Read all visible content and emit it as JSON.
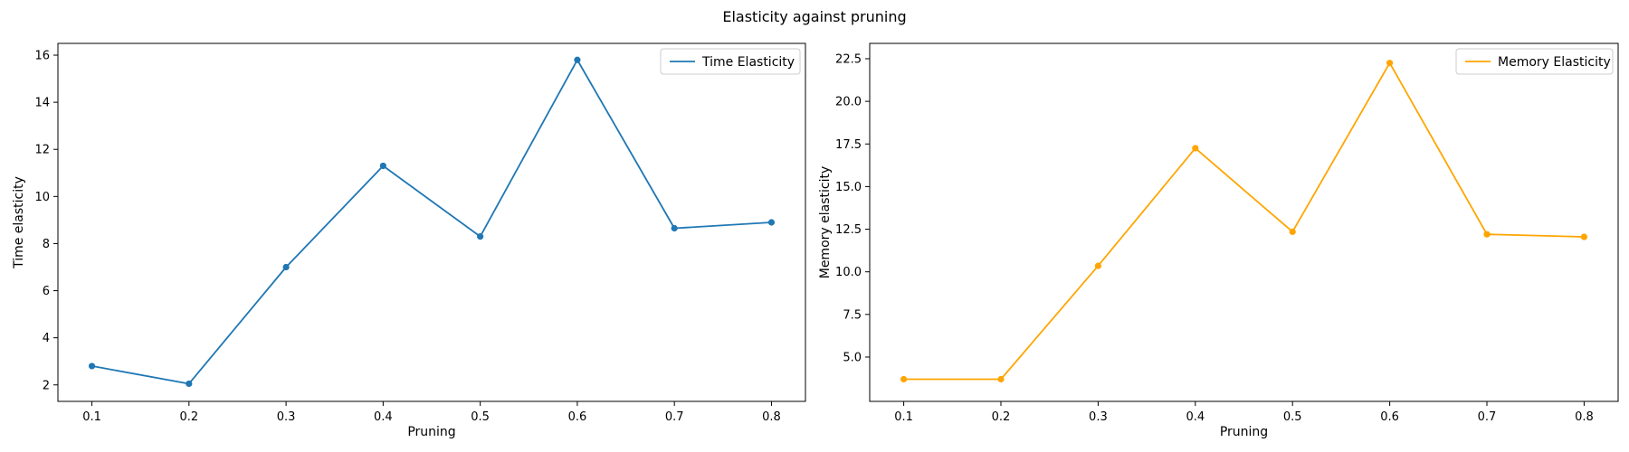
{
  "figure": {
    "title": "Elasticity against pruning"
  },
  "chart_data": [
    {
      "type": "line",
      "xlabel": "Pruning",
      "ylabel": "Time elasticity",
      "x": [
        0.1,
        0.2,
        0.3,
        0.4,
        0.5,
        0.6,
        0.7,
        0.8
      ],
      "series": [
        {
          "name": "Time Elasticity",
          "values": [
            2.8,
            2.05,
            7.0,
            11.3,
            8.3,
            15.8,
            8.65,
            8.9
          ],
          "color": "#1f77b4",
          "marker": "circle"
        }
      ],
      "xlim": [
        0.065,
        0.835
      ],
      "ylim": [
        1.3,
        16.5
      ],
      "xticks": [
        0.1,
        0.2,
        0.3,
        0.4,
        0.5,
        0.6,
        0.7,
        0.8
      ],
      "xtick_labels": [
        "0.1",
        "0.2",
        "0.3",
        "0.4",
        "0.5",
        "0.6",
        "0.7",
        "0.8"
      ],
      "yticks": [
        2,
        4,
        6,
        8,
        10,
        12,
        14,
        16
      ],
      "ytick_labels": [
        "2",
        "4",
        "6",
        "8",
        "10",
        "12",
        "14",
        "16"
      ],
      "legend": "top-right",
      "grid": false
    },
    {
      "type": "line",
      "xlabel": "Pruning",
      "ylabel": "Memory elasticity",
      "x": [
        0.1,
        0.2,
        0.3,
        0.4,
        0.5,
        0.6,
        0.7,
        0.8
      ],
      "series": [
        {
          "name": "Memory Elasticity",
          "values": [
            3.7,
            3.7,
            10.35,
            17.25,
            12.35,
            22.25,
            12.2,
            12.05
          ],
          "color": "#ffa500",
          "marker": "circle"
        }
      ],
      "xlim": [
        0.065,
        0.835
      ],
      "ylim": [
        2.4,
        23.4
      ],
      "xticks": [
        0.1,
        0.2,
        0.3,
        0.4,
        0.5,
        0.6,
        0.7,
        0.8
      ],
      "xtick_labels": [
        "0.1",
        "0.2",
        "0.3",
        "0.4",
        "0.5",
        "0.6",
        "0.7",
        "0.8"
      ],
      "yticks": [
        5.0,
        7.5,
        10.0,
        12.5,
        15.0,
        17.5,
        20.0,
        22.5
      ],
      "ytick_labels": [
        "5.0",
        "7.5",
        "10.0",
        "12.5",
        "15.0",
        "17.5",
        "20.0",
        "22.5"
      ],
      "legend": "top-right",
      "grid": false
    }
  ]
}
